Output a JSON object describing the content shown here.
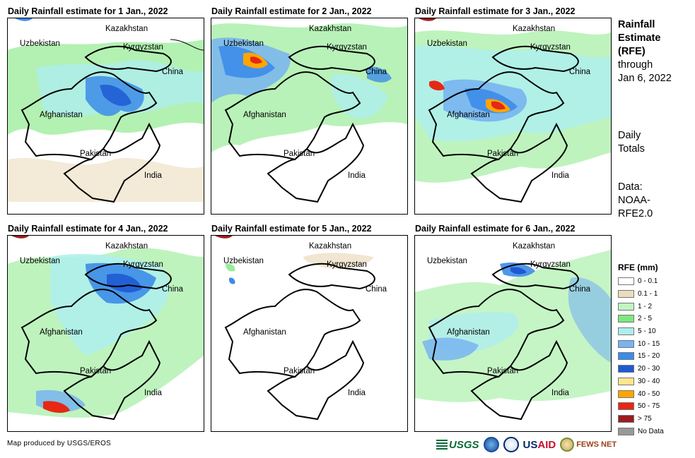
{
  "panels": [
    {
      "title": "Daily Rainfall estimate for 1 Jan., 2022"
    },
    {
      "title": "Daily Rainfall estimate for 2 Jan., 2022"
    },
    {
      "title": "Daily Rainfall estimate for 3 Jan., 2022"
    },
    {
      "title": "Daily Rainfall estimate for 4 Jan., 2022"
    },
    {
      "title": "Daily Rainfall estimate for 5 Jan., 2022"
    },
    {
      "title": "Daily Rainfall estimate for 6 Jan., 2022"
    }
  ],
  "map_labels": {
    "kazakhstan": "Kazakhstan",
    "uzbekistan": "Uzbekistan",
    "kyrgyzstan": "Kyrgyzstan",
    "china": "China",
    "afghanistan": "Afghanistan",
    "pakistan": "Pakistan",
    "india": "India"
  },
  "sidebar": {
    "title_line1": "Rainfall",
    "title_line2": "Estimate",
    "title_line3": "(RFE)",
    "through_label": "through",
    "date": "Jan 6, 2022",
    "daily_line1": "Daily",
    "daily_line2": "Totals",
    "data_line1": "Data:",
    "data_line2": "NOAA-",
    "data_line3": "RFE2.0"
  },
  "legend": {
    "title": "RFE (mm)",
    "items": [
      {
        "label": "0 - 0.1",
        "color": "#ffffff"
      },
      {
        "label": "0.1 - 1",
        "color": "#ebdcbe"
      },
      {
        "label": "1 - 2",
        "color": "#c2f5c2"
      },
      {
        "label": "2 - 5",
        "color": "#7ee87e"
      },
      {
        "label": "5 - 10",
        "color": "#aeeeee"
      },
      {
        "label": "10 - 15",
        "color": "#78b4f0"
      },
      {
        "label": "15 - 20",
        "color": "#3c8ce8"
      },
      {
        "label": "20 - 30",
        "color": "#1e5ad2"
      },
      {
        "label": "30 - 40",
        "color": "#ffe68c"
      },
      {
        "label": "40 - 50",
        "color": "#ffa500"
      },
      {
        "label": "50 - 75",
        "color": "#e62814"
      },
      {
        "label": "> 75",
        "color": "#9b1e1e"
      },
      {
        "label": "No Data",
        "color": "#999999"
      }
    ]
  },
  "footer": "Map produced by USGS/EROS",
  "logos": {
    "usgs": "USGS",
    "usaid_us": "US",
    "usaid_aid": "AID",
    "fews": "FEWS NET"
  }
}
